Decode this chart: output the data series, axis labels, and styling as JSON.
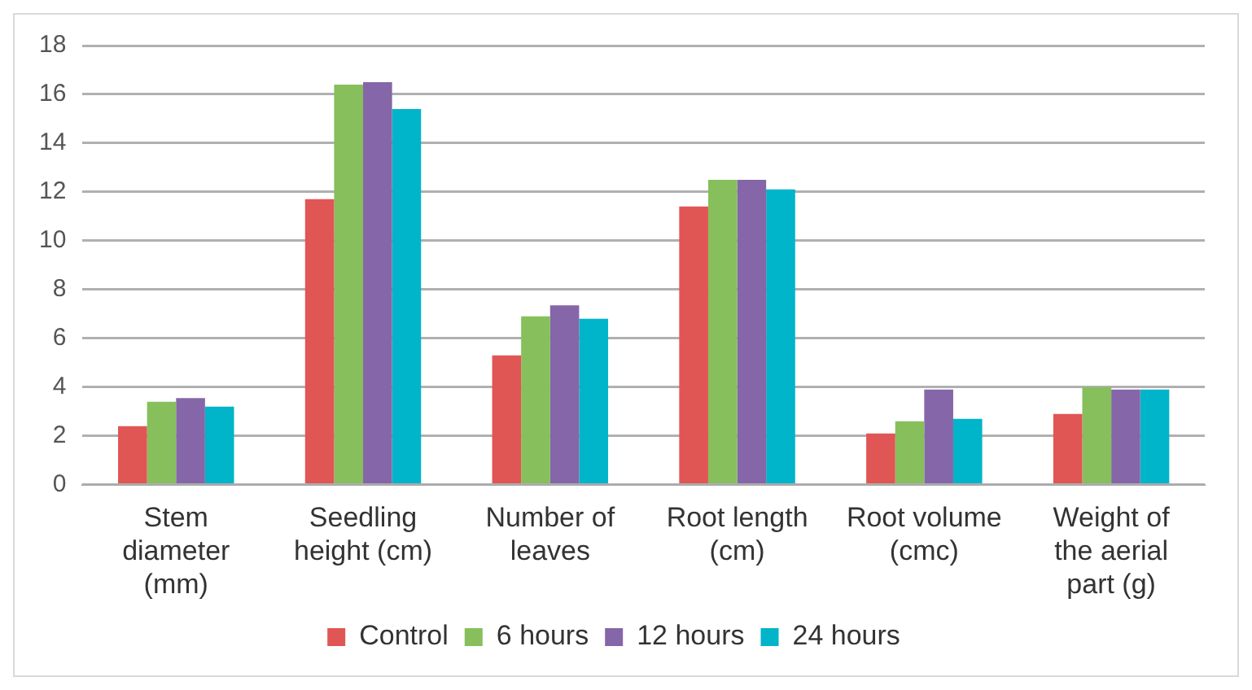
{
  "chart_data": {
    "type": "bar",
    "categories": [
      "Stem diameter (mm)",
      "Seedling height (cm)",
      "Number of leaves",
      "Root length (cm)",
      "Root volume (cmc)",
      "Weight of the aerial part (g)"
    ],
    "series": [
      {
        "name": "Control",
        "color": "#e05654",
        "values": [
          2.4,
          11.7,
          5.3,
          11.4,
          2.1,
          2.9
        ]
      },
      {
        "name": "6 hours",
        "color": "#86bf5c",
        "values": [
          3.4,
          16.4,
          6.9,
          12.5,
          2.6,
          4.0
        ]
      },
      {
        "name": "12 hours",
        "color": "#8566a8",
        "values": [
          3.55,
          16.5,
          7.35,
          12.5,
          3.9,
          3.9
        ]
      },
      {
        "name": "24 hours",
        "color": "#00b4c9",
        "values": [
          3.2,
          15.4,
          6.8,
          12.1,
          2.7,
          3.9
        ]
      }
    ],
    "ylim": [
      0,
      18
    ],
    "yticks": [
      0,
      2,
      4,
      6,
      8,
      10,
      12,
      14,
      16,
      18
    ],
    "grid": "y",
    "legend": "bottom"
  }
}
